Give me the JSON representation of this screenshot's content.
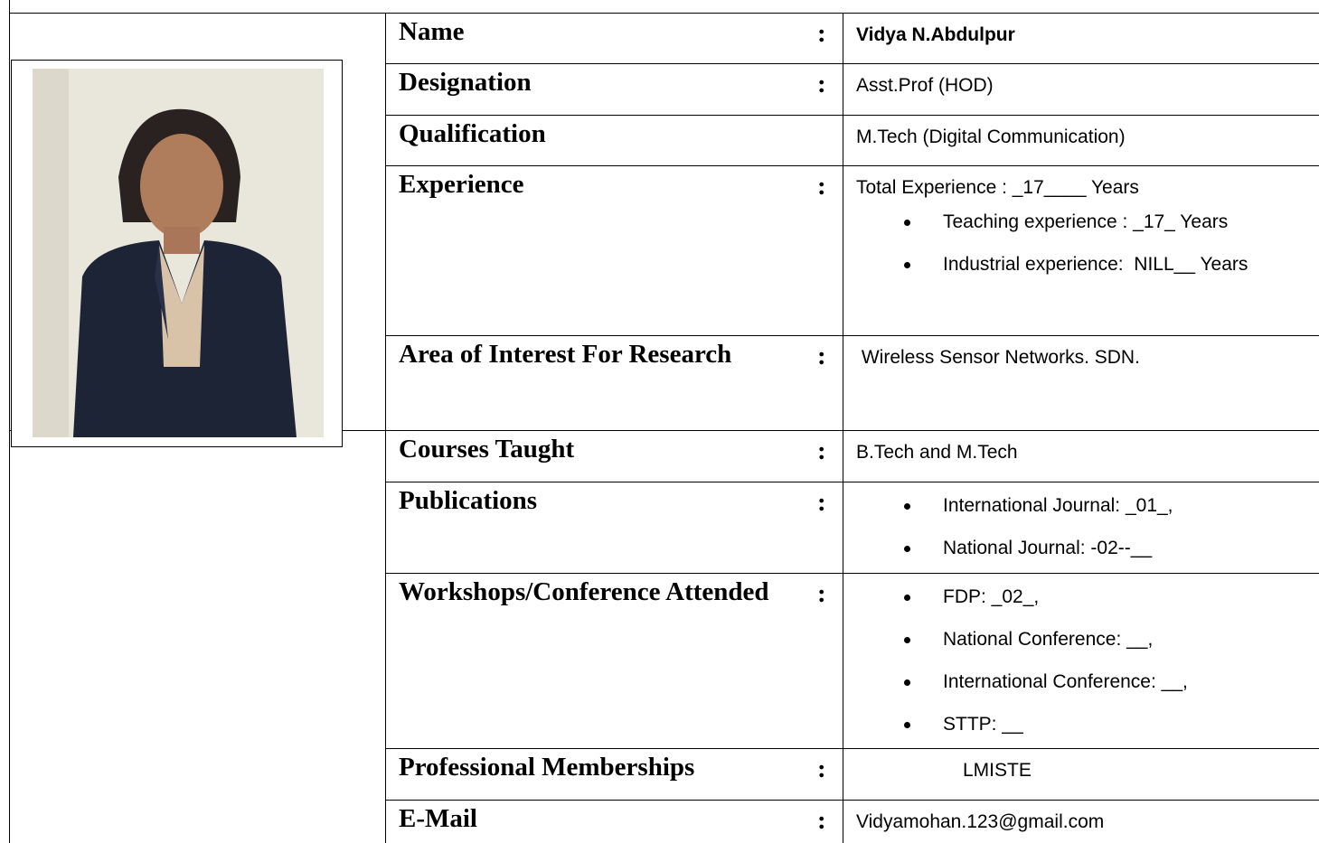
{
  "rows": [
    {
      "label": "Name",
      "separator": ":",
      "value": "Vidya N.Abdulpur"
    },
    {
      "label": "Designation",
      "separator": ":",
      "value": "Asst.Prof (HOD)"
    },
    {
      "label": "Qualification",
      "value": "M.Tech (Digital Communication)"
    },
    {
      "label": "Experience",
      "separator": ":",
      "value": "Total Experience : _17____ Years",
      "items": [
        "Teaching experience : _17_ Years",
        "Industrial experience:  NILL__ Years"
      ]
    },
    {
      "label": "Area of Interest For Research",
      "separator": ":",
      "value": " Wireless Sensor Networks. SDN."
    },
    {
      "label": "Courses Taught",
      "separator": ":",
      "value": "B.Tech and M.Tech"
    },
    {
      "label": "Publications",
      "separator": ":",
      "items": [
        "International Journal: _01_,",
        "National Journal: -02--__"
      ]
    },
    {
      "label": "Workshops/Conference Attended",
      "separator": ":",
      "items": [
        "FDP: _02_,",
        "National Conference: __,",
        "International Conference: __,",
        "STTP: __"
      ]
    },
    {
      "label": "Professional Memberships",
      "separator": ":",
      "value": "LMISTE"
    },
    {
      "label": "E-Mail",
      "separator": ":",
      "value": "Vidyamohan.123@gmail.com"
    }
  ]
}
